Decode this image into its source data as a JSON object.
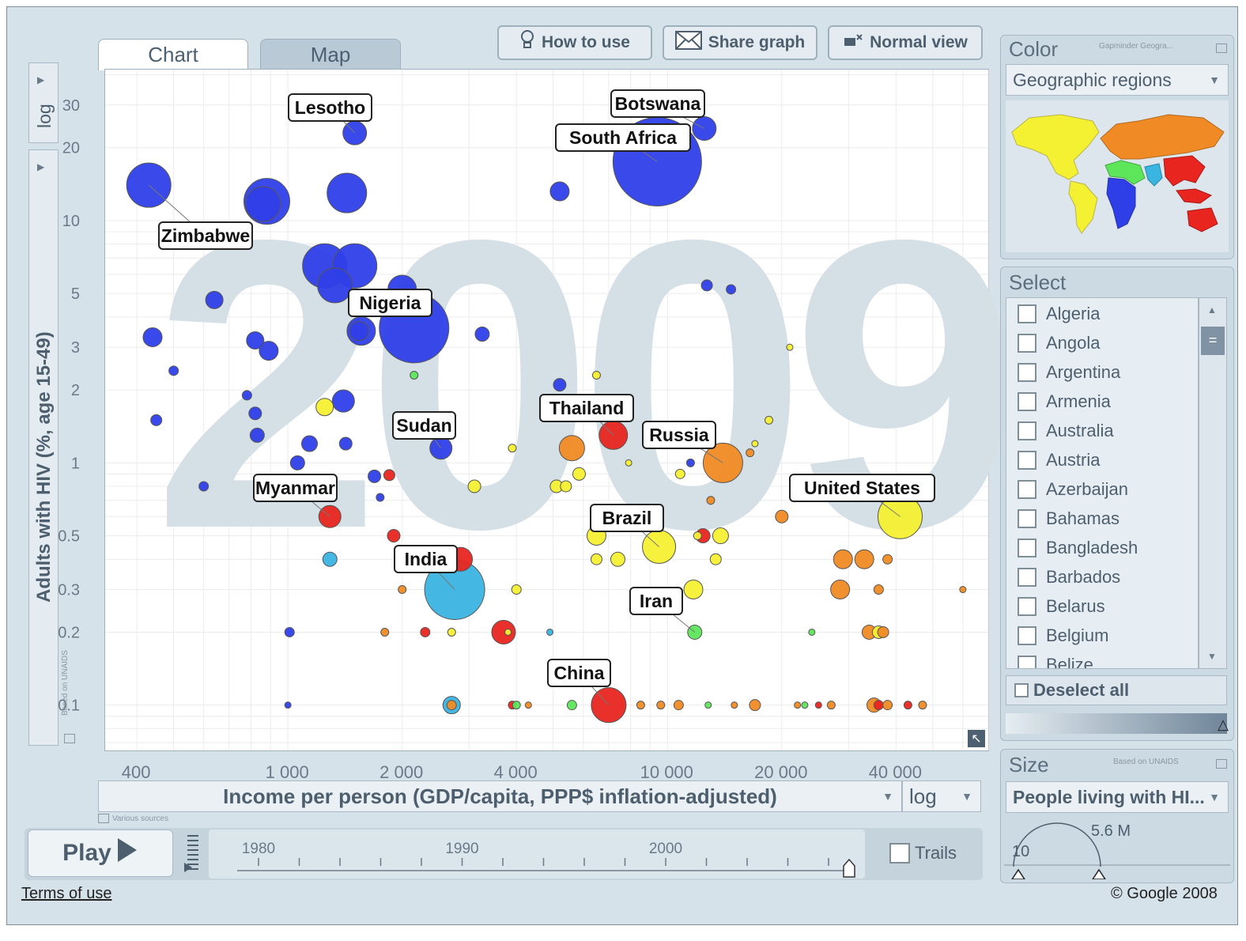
{
  "tabs": {
    "chart": "Chart",
    "map": "Map"
  },
  "toolbar": {
    "how_to_use": "How to use",
    "share_graph": "Share graph",
    "normal_view": "Normal view"
  },
  "y_axis": {
    "label": "Adults with HIV (%, age 15-49)",
    "scale": "log",
    "source": "Based on UNAIDS"
  },
  "x_axis": {
    "label": "Income per person (GDP/capita, PPP$ inflation-adjusted)",
    "scale": "log",
    "source": "Various sources"
  },
  "color_panel": {
    "title": "Color",
    "source": "Gapminder Geogra...",
    "indicator": "Geographic regions"
  },
  "select_panel": {
    "title": "Select",
    "countries": [
      "Algeria",
      "Angola",
      "Argentina",
      "Armenia",
      "Australia",
      "Austria",
      "Azerbaijan",
      "Bahamas",
      "Bangladesh",
      "Barbados",
      "Belarus",
      "Belgium",
      "Belize"
    ],
    "deselect_all": "Deselect all"
  },
  "size_panel": {
    "title": "Size",
    "source": "Based on UNAIDS",
    "indicator": "People living with HI...",
    "min_label": "10",
    "max_label": "5.6 M"
  },
  "play": {
    "label": "Play",
    "trails": "Trails",
    "years": [
      "1980",
      "1990",
      "2000"
    ],
    "current_year_fraction": 1.0
  },
  "footer": {
    "terms": "Terms of use",
    "copyright": "© Google 2008"
  },
  "colors": {
    "sub_saharan_africa": "#2f3fe8",
    "south_asia": "#3ab4e0",
    "east_asia_pacific": "#e8251f",
    "europe_central_asia": "#f08a24",
    "americas": "#f4f032",
    "middle_east_north_africa": "#5de65a"
  },
  "chart_data": {
    "type": "scatter",
    "year": "2009",
    "xlabel": "Income per person (GDP/capita, PPP$ inflation-adjusted)",
    "ylabel": "Adults with HIV (%, age 15-49)",
    "xscale": "log",
    "yscale": "log",
    "xlim": [
      330,
      70000
    ],
    "ylim": [
      0.065,
      42
    ],
    "x_ticks": [
      {
        "v": 400,
        "t": "400"
      },
      {
        "v": 1000,
        "t": "1 000"
      },
      {
        "v": 2000,
        "t": "2 000"
      },
      {
        "v": 4000,
        "t": "4 000"
      },
      {
        "v": 10000,
        "t": "10 000"
      },
      {
        "v": 20000,
        "t": "20 000"
      },
      {
        "v": 40000,
        "t": "40 000"
      }
    ],
    "y_ticks": [
      {
        "v": 0.1,
        "t": "0.1"
      },
      {
        "v": 0.2,
        "t": "0.2"
      },
      {
        "v": 0.3,
        "t": "0.3"
      },
      {
        "v": 0.5,
        "t": "0.5"
      },
      {
        "v": 1,
        "t": "1"
      },
      {
        "v": 2,
        "t": "2"
      },
      {
        "v": 3,
        "t": "3"
      },
      {
        "v": 5,
        "t": "5"
      },
      {
        "v": 10,
        "t": "10"
      },
      {
        "v": 20,
        "t": "20"
      },
      {
        "v": 30,
        "t": "30"
      }
    ],
    "points": [
      {
        "x": 9400,
        "y": 17.5,
        "s": 56,
        "c": "#2f3fe8",
        "label": "South Africa"
      },
      {
        "x": 12500,
        "y": 24,
        "s": 15,
        "c": "#2f3fe8",
        "label": "Botswana"
      },
      {
        "x": 1500,
        "y": 23,
        "s": 15,
        "c": "#2f3fe8",
        "label": "Lesotho"
      },
      {
        "x": 430,
        "y": 14,
        "s": 28,
        "c": "#2f3fe8",
        "label": "Zimbabwe"
      },
      {
        "x": 880,
        "y": 12,
        "s": 29,
        "c": "#2f3fe8"
      },
      {
        "x": 860,
        "y": 11.7,
        "s": 22,
        "c": "#2f3fe8"
      },
      {
        "x": 1430,
        "y": 13,
        "s": 25,
        "c": "#2f3fe8"
      },
      {
        "x": 5200,
        "y": 13.2,
        "s": 12,
        "c": "#2f3fe8"
      },
      {
        "x": 1250,
        "y": 6.5,
        "s": 28,
        "c": "#2f3fe8"
      },
      {
        "x": 1500,
        "y": 6.5,
        "s": 28,
        "c": "#2f3fe8"
      },
      {
        "x": 1330,
        "y": 5.4,
        "s": 22,
        "c": "#2f3fe8"
      },
      {
        "x": 2000,
        "y": 5.2,
        "s": 18,
        "c": "#2f3fe8",
        "label": "Nigeria"
      },
      {
        "x": 2150,
        "y": 3.6,
        "s": 44,
        "c": "#2f3fe8"
      },
      {
        "x": 1560,
        "y": 3.5,
        "s": 18,
        "c": "#2f3fe8"
      },
      {
        "x": 1540,
        "y": 3.5,
        "s": 12,
        "c": "#2f3fe8"
      },
      {
        "x": 640,
        "y": 4.7,
        "s": 11,
        "c": "#2f3fe8"
      },
      {
        "x": 440,
        "y": 3.3,
        "s": 12,
        "c": "#2f3fe8"
      },
      {
        "x": 500,
        "y": 2.4,
        "s": 6,
        "c": "#2f3fe8"
      },
      {
        "x": 820,
        "y": 3.2,
        "s": 11,
        "c": "#2f3fe8"
      },
      {
        "x": 890,
        "y": 2.9,
        "s": 12,
        "c": "#2f3fe8"
      },
      {
        "x": 3250,
        "y": 3.4,
        "s": 9,
        "c": "#2f3fe8"
      },
      {
        "x": 12700,
        "y": 5.4,
        "s": 7,
        "c": "#2f3fe8"
      },
      {
        "x": 14700,
        "y": 5.2,
        "s": 6,
        "c": "#2f3fe8"
      },
      {
        "x": 780,
        "y": 1.9,
        "s": 6,
        "c": "#2f3fe8"
      },
      {
        "x": 820,
        "y": 1.6,
        "s": 8,
        "c": "#2f3fe8"
      },
      {
        "x": 830,
        "y": 1.3,
        "s": 9,
        "c": "#2f3fe8"
      },
      {
        "x": 1400,
        "y": 1.8,
        "s": 14,
        "c": "#2f3fe8"
      },
      {
        "x": 450,
        "y": 1.5,
        "s": 7,
        "c": "#2f3fe8"
      },
      {
        "x": 1140,
        "y": 1.2,
        "s": 10,
        "c": "#2f3fe8"
      },
      {
        "x": 1420,
        "y": 1.2,
        "s": 8,
        "c": "#2f3fe8"
      },
      {
        "x": 2530,
        "y": 1.15,
        "s": 14,
        "c": "#2f3fe8",
        "label": "Sudan"
      },
      {
        "x": 1060,
        "y": 1.0,
        "s": 9,
        "c": "#2f3fe8"
      },
      {
        "x": 1690,
        "y": 0.88,
        "s": 8,
        "c": "#2f3fe8"
      },
      {
        "x": 1750,
        "y": 0.72,
        "s": 5,
        "c": "#2f3fe8"
      },
      {
        "x": 600,
        "y": 0.8,
        "s": 6,
        "c": "#2f3fe8"
      },
      {
        "x": 5200,
        "y": 2.1,
        "s": 8,
        "c": "#2f3fe8"
      },
      {
        "x": 11500,
        "y": 1.0,
        "s": 5,
        "c": "#2f3fe8"
      },
      {
        "x": 1010,
        "y": 0.2,
        "s": 6,
        "c": "#2f3fe8"
      },
      {
        "x": 1000,
        "y": 0.1,
        "s": 4,
        "c": "#2f3fe8"
      },
      {
        "x": 1290,
        "y": 0.6,
        "s": 14,
        "c": "#e8251f",
        "label": "Myanmar"
      },
      {
        "x": 7200,
        "y": 1.3,
        "s": 18,
        "c": "#e8251f",
        "label": "Thailand"
      },
      {
        "x": 1850,
        "y": 0.89,
        "s": 7,
        "c": "#e8251f"
      },
      {
        "x": 1900,
        "y": 0.5,
        "s": 8,
        "c": "#e8251f"
      },
      {
        "x": 2850,
        "y": 0.4,
        "s": 15,
        "c": "#e8251f"
      },
      {
        "x": 3700,
        "y": 0.2,
        "s": 15,
        "c": "#e8251f"
      },
      {
        "x": 7000,
        "y": 0.1,
        "s": 22,
        "c": "#e8251f",
        "label": "China"
      },
      {
        "x": 12400,
        "y": 0.5,
        "s": 9,
        "c": "#e8251f"
      },
      {
        "x": 2300,
        "y": 0.2,
        "s": 6,
        "c": "#e8251f"
      },
      {
        "x": 3900,
        "y": 0.1,
        "s": 5,
        "c": "#e8251f"
      },
      {
        "x": 36000,
        "y": 0.1,
        "s": 6,
        "c": "#e8251f"
      },
      {
        "x": 43000,
        "y": 0.1,
        "s": 5,
        "c": "#e8251f"
      },
      {
        "x": 25000,
        "y": 0.1,
        "s": 4,
        "c": "#e8251f"
      },
      {
        "x": 2750,
        "y": 0.3,
        "s": 38,
        "c": "#3ab4e0",
        "label": "India"
      },
      {
        "x": 1290,
        "y": 0.4,
        "s": 9,
        "c": "#3ab4e0"
      },
      {
        "x": 2700,
        "y": 0.1,
        "s": 11,
        "c": "#3ab4e0"
      },
      {
        "x": 4900,
        "y": 0.2,
        "s": 4,
        "c": "#3ab4e0"
      },
      {
        "x": 14000,
        "y": 1.0,
        "s": 25,
        "c": "#f08a24",
        "label": "Russia"
      },
      {
        "x": 5600,
        "y": 1.15,
        "s": 16,
        "c": "#f08a24"
      },
      {
        "x": 16500,
        "y": 1.1,
        "s": 5,
        "c": "#f08a24"
      },
      {
        "x": 13000,
        "y": 0.7,
        "s": 5,
        "c": "#f08a24"
      },
      {
        "x": 20000,
        "y": 0.6,
        "s": 8,
        "c": "#f08a24"
      },
      {
        "x": 29000,
        "y": 0.4,
        "s": 12,
        "c": "#f08a24"
      },
      {
        "x": 33000,
        "y": 0.4,
        "s": 12,
        "c": "#f08a24"
      },
      {
        "x": 38000,
        "y": 0.4,
        "s": 6,
        "c": "#f08a24"
      },
      {
        "x": 28500,
        "y": 0.3,
        "s": 12,
        "c": "#f08a24"
      },
      {
        "x": 36000,
        "y": 0.3,
        "s": 6,
        "c": "#f08a24"
      },
      {
        "x": 60000,
        "y": 0.3,
        "s": 4,
        "c": "#f08a24"
      },
      {
        "x": 34000,
        "y": 0.2,
        "s": 9,
        "c": "#f08a24"
      },
      {
        "x": 37000,
        "y": 0.2,
        "s": 7,
        "c": "#f08a24"
      },
      {
        "x": 2000,
        "y": 0.3,
        "s": 5,
        "c": "#f08a24"
      },
      {
        "x": 1800,
        "y": 0.2,
        "s": 5,
        "c": "#f08a24"
      },
      {
        "x": 2700,
        "y": 0.1,
        "s": 6,
        "c": "#f08a24"
      },
      {
        "x": 4300,
        "y": 0.1,
        "s": 4,
        "c": "#f08a24"
      },
      {
        "x": 8500,
        "y": 0.1,
        "s": 5,
        "c": "#f08a24"
      },
      {
        "x": 9600,
        "y": 0.1,
        "s": 5,
        "c": "#f08a24"
      },
      {
        "x": 10700,
        "y": 0.1,
        "s": 6,
        "c": "#f08a24"
      },
      {
        "x": 15000,
        "y": 0.1,
        "s": 4,
        "c": "#f08a24"
      },
      {
        "x": 17000,
        "y": 0.1,
        "s": 7,
        "c": "#f08a24"
      },
      {
        "x": 22000,
        "y": 0.1,
        "s": 4,
        "c": "#f08a24"
      },
      {
        "x": 27000,
        "y": 0.1,
        "s": 5,
        "c": "#f08a24"
      },
      {
        "x": 35000,
        "y": 0.1,
        "s": 9,
        "c": "#f08a24"
      },
      {
        "x": 38000,
        "y": 0.1,
        "s": 6,
        "c": "#f08a24"
      },
      {
        "x": 47000,
        "y": 0.1,
        "s": 5,
        "c": "#f08a24"
      },
      {
        "x": 41000,
        "y": 0.6,
        "s": 28,
        "c": "#f4f032",
        "label": "United States"
      },
      {
        "x": 9500,
        "y": 0.45,
        "s": 21,
        "c": "#f4f032",
        "label": "Brazil"
      },
      {
        "x": 11700,
        "y": 0.3,
        "s": 12,
        "c": "#f4f032"
      },
      {
        "x": 1250,
        "y": 1.7,
        "s": 11,
        "c": "#f4f032"
      },
      {
        "x": 6500,
        "y": 1.65,
        "s": 7,
        "c": "#f4f032"
      },
      {
        "x": 5850,
        "y": 0.9,
        "s": 8,
        "c": "#f4f032"
      },
      {
        "x": 5100,
        "y": 0.8,
        "s": 8,
        "c": "#f4f032"
      },
      {
        "x": 5400,
        "y": 0.8,
        "s": 7,
        "c": "#f4f032"
      },
      {
        "x": 3100,
        "y": 0.8,
        "s": 8,
        "c": "#f4f032"
      },
      {
        "x": 3900,
        "y": 1.15,
        "s": 5,
        "c": "#f4f032"
      },
      {
        "x": 6500,
        "y": 0.5,
        "s": 12,
        "c": "#f4f032"
      },
      {
        "x": 7400,
        "y": 0.4,
        "s": 9,
        "c": "#f4f032"
      },
      {
        "x": 6500,
        "y": 0.4,
        "s": 7,
        "c": "#f4f032"
      },
      {
        "x": 13800,
        "y": 0.5,
        "s": 10,
        "c": "#f4f032"
      },
      {
        "x": 13400,
        "y": 0.4,
        "s": 7,
        "c": "#f4f032"
      },
      {
        "x": 7900,
        "y": 1.0,
        "s": 4,
        "c": "#f4f032"
      },
      {
        "x": 10800,
        "y": 0.9,
        "s": 6,
        "c": "#f4f032"
      },
      {
        "x": 6500,
        "y": 2.3,
        "s": 5,
        "c": "#f4f032"
      },
      {
        "x": 17000,
        "y": 1.2,
        "s": 4,
        "c": "#f4f032"
      },
      {
        "x": 18500,
        "y": 1.5,
        "s": 5,
        "c": "#f4f032"
      },
      {
        "x": 21000,
        "y": 3.0,
        "s": 4,
        "c": "#f4f032"
      },
      {
        "x": 12000,
        "y": 0.5,
        "s": 5,
        "c": "#f4f032"
      },
      {
        "x": 2700,
        "y": 0.2,
        "s": 5,
        "c": "#f4f032"
      },
      {
        "x": 4000,
        "y": 0.3,
        "s": 6,
        "c": "#f4f032"
      },
      {
        "x": 36000,
        "y": 0.2,
        "s": 8,
        "c": "#f4f032"
      },
      {
        "x": 3800,
        "y": 0.2,
        "s": 4,
        "c": "#f4f032"
      },
      {
        "x": 11800,
        "y": 0.2,
        "s": 9,
        "c": "#5de65a",
        "label": "Iran"
      },
      {
        "x": 2150,
        "y": 2.3,
        "s": 5,
        "c": "#5de65a"
      },
      {
        "x": 5600,
        "y": 0.1,
        "s": 6,
        "c": "#5de65a"
      },
      {
        "x": 4000,
        "y": 0.1,
        "s": 5,
        "c": "#5de65a"
      },
      {
        "x": 12800,
        "y": 0.1,
        "s": 4,
        "c": "#5de65a"
      },
      {
        "x": 24000,
        "y": 0.2,
        "s": 4,
        "c": "#5de65a"
      },
      {
        "x": 23000,
        "y": 0.1,
        "s": 4,
        "c": "#5de65a"
      }
    ],
    "callouts": [
      {
        "text": "Lesotho",
        "ref": "Lesotho"
      },
      {
        "text": "Botswana",
        "ref": "Botswana"
      },
      {
        "text": "South Africa",
        "ref": "South Africa"
      },
      {
        "text": "Zimbabwe",
        "ref": "Zimbabwe"
      },
      {
        "text": "Nigeria",
        "ref": "Nigeria"
      },
      {
        "text": "Thailand",
        "ref": "Thailand"
      },
      {
        "text": "Sudan",
        "ref": "Sudan"
      },
      {
        "text": "Russia",
        "ref": "Russia"
      },
      {
        "text": "Myanmar",
        "ref": "Myanmar"
      },
      {
        "text": "United States",
        "ref": "United States"
      },
      {
        "text": "Brazil",
        "ref": "Brazil"
      },
      {
        "text": "India",
        "ref": "India"
      },
      {
        "text": "Iran",
        "ref": "Iran"
      },
      {
        "text": "China",
        "ref": "China"
      }
    ],
    "grid": true
  }
}
